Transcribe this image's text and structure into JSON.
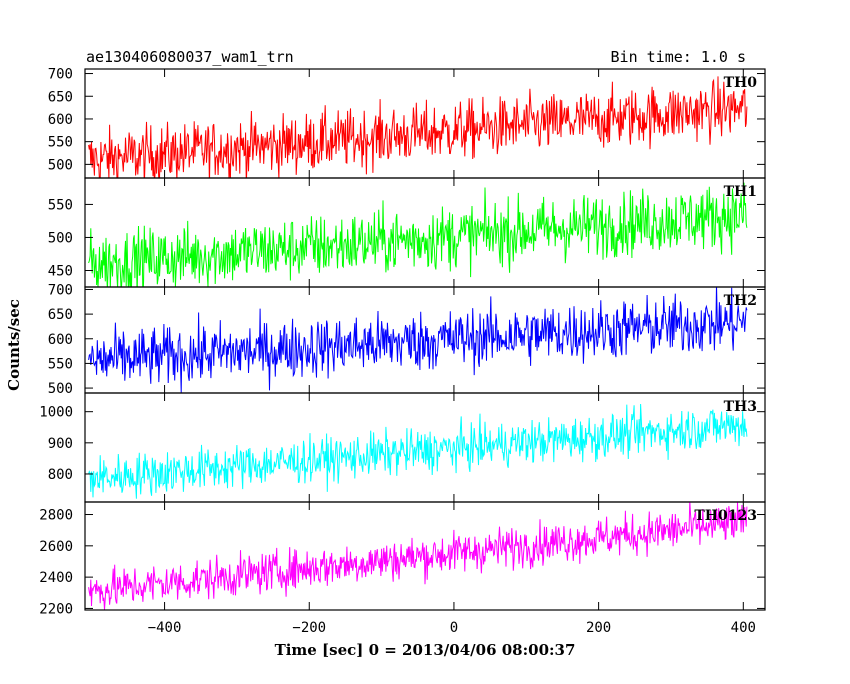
{
  "header": {
    "title": "ae130406080037_wam1_trn",
    "bin_time": "Bin time: 1.0 s"
  },
  "chart_data": {
    "type": "line",
    "title": "ae130406080037_wam1_trn",
    "xlabel": "Time [sec] 0 = 2013/04/06 08:00:37",
    "ylabel": "Counts/sec",
    "xlim": [
      -510,
      430
    ],
    "x_ticks": [
      -400,
      -200,
      0,
      200,
      400
    ],
    "x_tick_labels": [
      "−400",
      "−200",
      "0",
      "200",
      "400"
    ],
    "x_range": [
      -505,
      405
    ],
    "bin_time_s": 1.0,
    "grid": false,
    "panels": [
      {
        "name": "TH0",
        "color": "#ff0000",
        "ylim": [
          470,
          710
        ],
        "yticks": [
          500,
          550,
          600,
          650,
          700
        ],
        "trend": [
          510,
          625
        ],
        "noise": 32
      },
      {
        "name": "TH1",
        "color": "#00ff00",
        "ylim": [
          425,
          590
        ],
        "yticks": [
          450,
          500,
          550
        ],
        "trend": [
          460,
          535
        ],
        "noise": 24
      },
      {
        "name": "TH2",
        "color": "#0000ff",
        "ylim": [
          490,
          705
        ],
        "yticks": [
          500,
          550,
          600,
          650,
          700
        ],
        "trend": [
          555,
          635
        ],
        "noise": 30
      },
      {
        "name": "TH3",
        "color": "#00ffff",
        "ylim": [
          710,
          1060
        ],
        "yticks": [
          800,
          900,
          1000
        ],
        "trend": [
          785,
          960
        ],
        "noise": 35
      },
      {
        "name": "TH0123",
        "color": "#ff00ff",
        "ylim": [
          2190,
          2880
        ],
        "yticks": [
          2200,
          2400,
          2600,
          2800
        ],
        "trend": [
          2310,
          2750
        ],
        "noise": 65
      }
    ]
  }
}
